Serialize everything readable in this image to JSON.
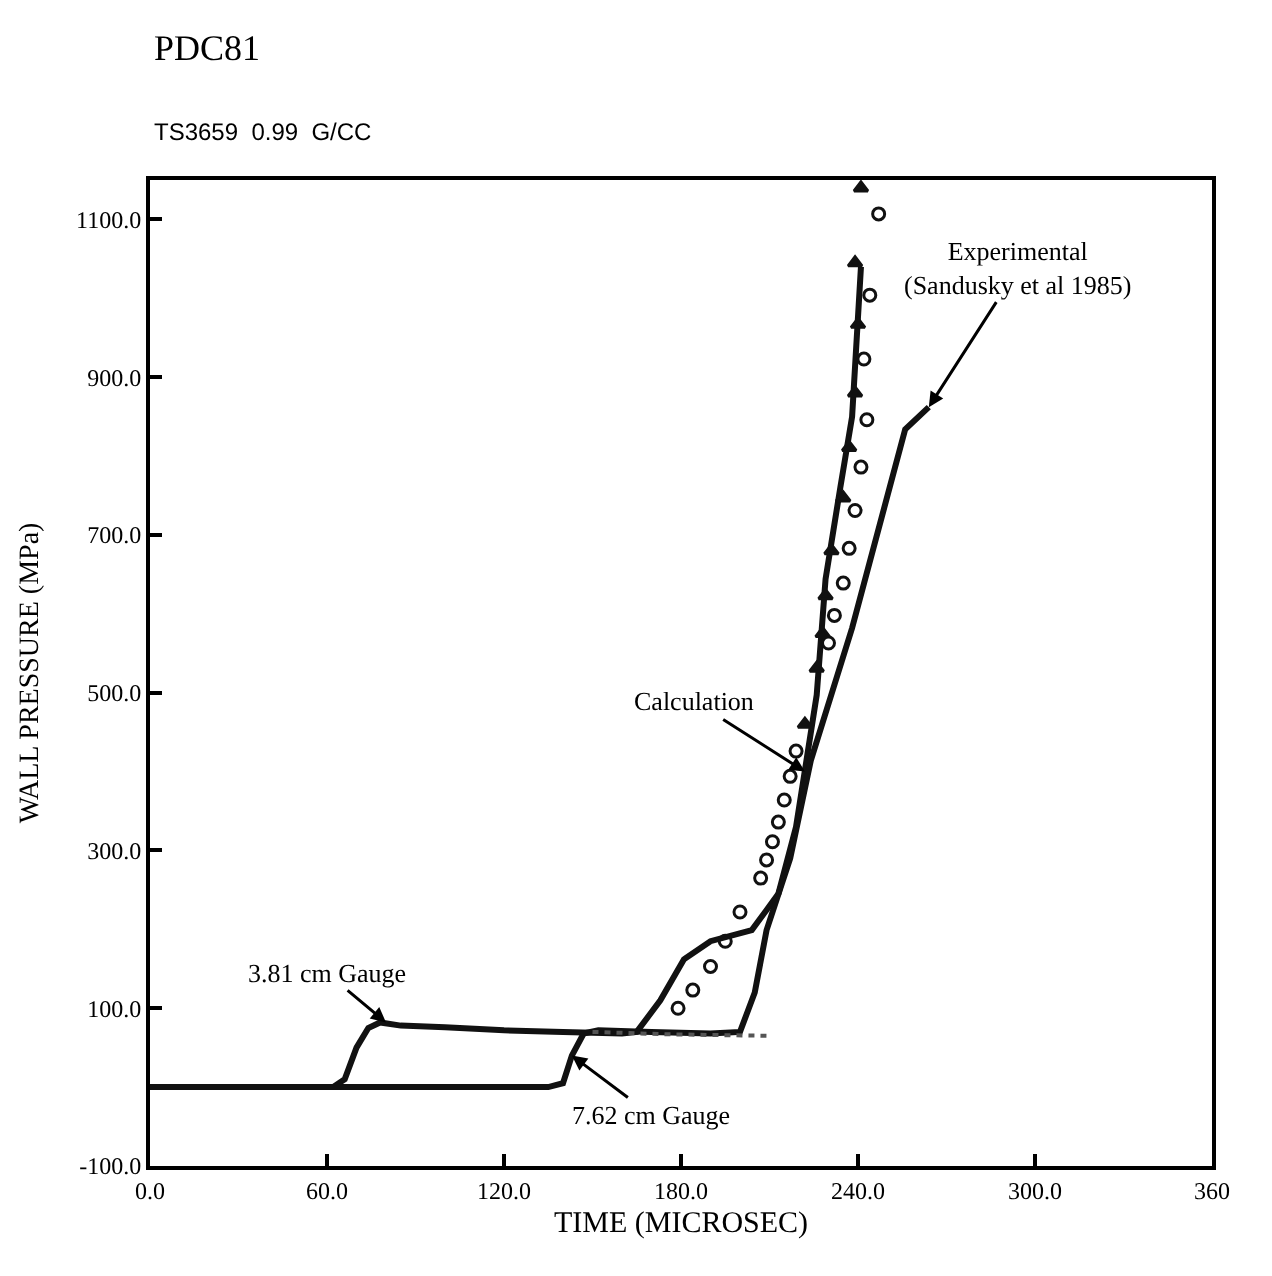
{
  "chart_data": {
    "type": "line",
    "title": "PDC81",
    "subtitle": "TS3659  0.99  G/CC",
    "xlabel": "TIME (MICROSEC)",
    "ylabel": "WALL PRESSURE (MPa)",
    "series": [
      {
        "color": "#111111",
        "line_style": "solid",
        "x": [
          0,
          62,
          66,
          70,
          74,
          78,
          85,
          100,
          120,
          140,
          160,
          165,
          173,
          181,
          190,
          204,
          213,
          219,
          226,
          229,
          234,
          238,
          241
        ],
        "values": [
          0,
          0,
          10,
          50,
          75,
          82,
          78,
          76,
          72,
          70,
          68,
          70,
          110,
          162,
          185,
          199,
          245,
          330,
          497,
          644,
          760,
          850,
          1040
        ]
      },
      {
        "color": "#111111",
        "line_style": "solid",
        "x": [
          0,
          135,
          140,
          143,
          147,
          152,
          170,
          190,
          200,
          205,
          209,
          217,
          224,
          238,
          250,
          256,
          264
        ],
        "values": [
          0,
          0,
          5,
          40,
          68,
          72,
          70,
          68,
          70,
          120,
          199,
          290,
          414,
          582,
          750,
          834,
          862
        ]
      },
      {
        "color": "#555555",
        "line_style": "dotted",
        "x": [
          150,
          175,
          210
        ],
        "values": [
          70,
          67,
          65
        ]
      },
      {
        "type": "scatter",
        "color": "#111111",
        "marker": "circle",
        "x": [
          179,
          184,
          190,
          195,
          200,
          207,
          209,
          211,
          213,
          215,
          217,
          219,
          230,
          232,
          235,
          237,
          239,
          241,
          243,
          242,
          244,
          247
        ],
        "values": [
          100,
          123,
          153,
          185,
          222,
          265,
          288,
          311,
          336,
          364,
          394,
          426,
          563,
          598,
          639,
          683,
          731,
          786,
          846,
          923,
          1004,
          1107
        ]
      },
      {
        "type": "scatter",
        "color": "#111111",
        "marker": "triangle",
        "x": [
          222,
          226,
          228,
          229,
          231,
          235,
          237,
          239,
          240,
          239,
          241
        ],
        "values": [
          460,
          531,
          575,
          623,
          680,
          747,
          811,
          880,
          967,
          1045,
          1140
        ]
      }
    ],
    "xlim": [
      0,
      360
    ],
    "xticks": [
      {
        "value": 0,
        "label": "0.0"
      },
      {
        "value": 60,
        "label": "60.0"
      },
      {
        "value": 120,
        "label": "120.0"
      },
      {
        "value": 180,
        "label": "180.0"
      },
      {
        "value": 240,
        "label": "240.0"
      },
      {
        "value": 300,
        "label": "300.0"
      },
      {
        "value": 360,
        "label": "360"
      }
    ],
    "ylim": [
      -100,
      1150
    ],
    "yticks": [
      {
        "value": -100,
        "label": "-100.0"
      },
      {
        "value": 100,
        "label": "100.0"
      },
      {
        "value": 300,
        "label": "300.0"
      },
      {
        "value": 500,
        "label": "500.0"
      },
      {
        "value": 700,
        "label": "700.0"
      },
      {
        "value": 900,
        "label": "900.0"
      },
      {
        "value": 1100,
        "label": "1100.0"
      }
    ],
    "annotations": [
      {
        "text": "Calculation",
        "x": 222,
        "y": 400
      },
      {
        "text": "Experimental\n(Sandusky et al 1985)",
        "x": 264,
        "y": 862
      },
      {
        "text": "3.81 cm Gauge",
        "x": 80,
        "y": 82
      },
      {
        "text": "7.62 cm Gauge",
        "x": 143,
        "y": 40
      }
    ]
  }
}
